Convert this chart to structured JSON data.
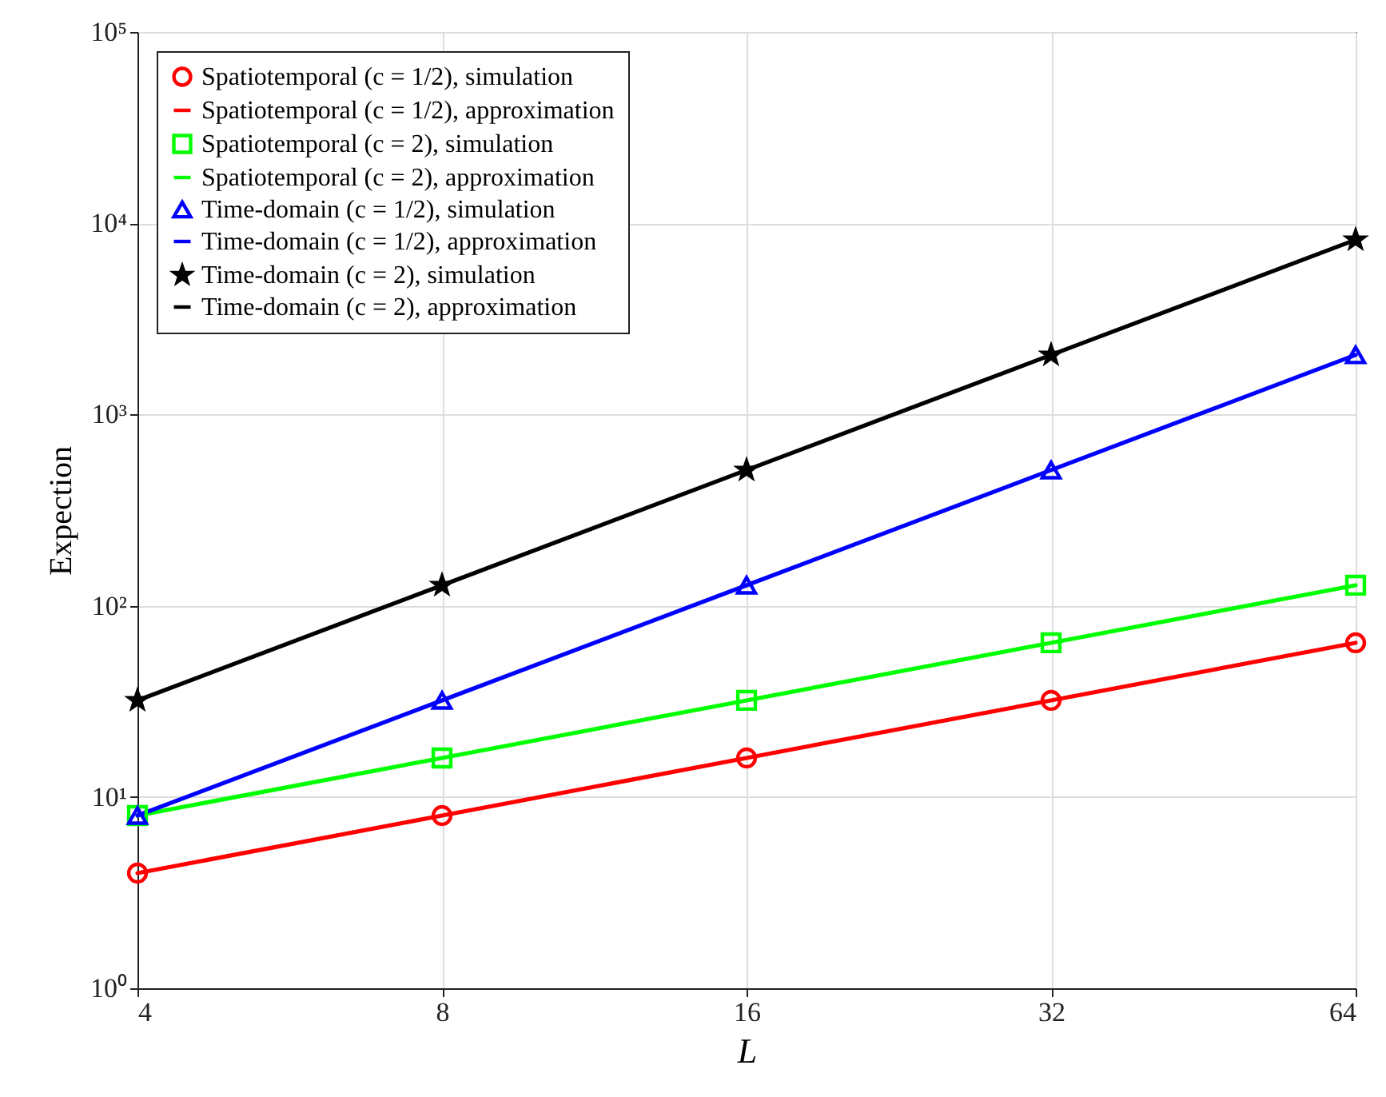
{
  "chart_data": {
    "type": "line",
    "xlabel": "L",
    "ylabel": "Expection",
    "x": [
      4,
      8,
      16,
      32,
      64
    ],
    "series": [
      {
        "name": "Spatiotemporal (c = 1/2), simulation",
        "type": "scatter",
        "marker": "circle",
        "color": "#ff0000",
        "values": [
          4,
          8,
          16,
          32,
          64
        ]
      },
      {
        "name": "Spatiotemporal (c = 1/2), approximation",
        "color": "#ff0000",
        "values": [
          4,
          8,
          16,
          32,
          64
        ]
      },
      {
        "name": "Spatiotemporal (c = 2), simulation",
        "type": "scatter",
        "marker": "square",
        "color": "#00ff00",
        "values": [
          8,
          16,
          32,
          64,
          128
        ]
      },
      {
        "name": "Spatiotemporal (c = 2), approximation",
        "color": "#00ff00",
        "values": [
          8,
          16,
          32,
          64,
          128
        ]
      },
      {
        "name": "Time-domain (c = 1/2), simulation",
        "type": "scatter",
        "marker": "triangle",
        "color": "#0000ff",
        "values": [
          8,
          32,
          128,
          512,
          2048
        ]
      },
      {
        "name": "Time-domain (c = 1/2), approximation",
        "color": "#0000ff",
        "values": [
          8,
          32,
          128,
          512,
          2048
        ]
      },
      {
        "name": "Time-domain (c = 2), simulation",
        "type": "scatter",
        "marker": "star",
        "color": "#000000",
        "values": [
          32,
          128,
          512,
          2048,
          8192
        ]
      },
      {
        "name": "Time-domain (c = 2), approximation",
        "color": "#000000",
        "values": [
          32,
          128,
          512,
          2048,
          8192
        ]
      }
    ],
    "log": "xy",
    "xlim": [
      4,
      64
    ],
    "xticks": [
      4,
      8,
      16,
      32,
      64
    ],
    "ylim": [
      1,
      100000
    ],
    "yticks": [
      {
        "value": 1,
        "label": "10⁰"
      },
      {
        "value": 10,
        "label": "10¹"
      },
      {
        "value": 100,
        "label": "10²"
      },
      {
        "value": 1000,
        "label": "10³"
      },
      {
        "value": 10000,
        "label": "10⁴"
      },
      {
        "value": 100000,
        "label": "10⁵"
      }
    ],
    "grid": true,
    "legend": "top left"
  }
}
